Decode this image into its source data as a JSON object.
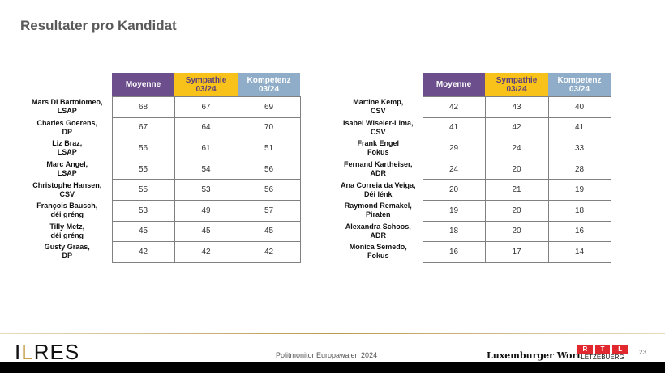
{
  "title": "Resultater pro Kandidat",
  "headers": [
    "Moyenne",
    "Sympathie 03/24",
    "Kompetenz 03/24"
  ],
  "left": [
    {
      "name": "Mars Di Bartolomeo,",
      "party": "LSAP",
      "v": [
        "68",
        "67",
        "69"
      ]
    },
    {
      "name": "Charles Goerens,",
      "party": "DP",
      "v": [
        "67",
        "64",
        "70"
      ]
    },
    {
      "name": "Liz Braz,",
      "party": "LSAP",
      "v": [
        "56",
        "61",
        "51"
      ]
    },
    {
      "name": "Marc Angel,",
      "party": "LSAP",
      "v": [
        "55",
        "54",
        "56"
      ]
    },
    {
      "name": "Christophe Hansen,",
      "party": "CSV",
      "v": [
        "55",
        "53",
        "56"
      ]
    },
    {
      "name": "François Bausch,",
      "party": "déi gréng",
      "v": [
        "53",
        "49",
        "57"
      ]
    },
    {
      "name": "Tilly Metz,",
      "party": "déi gréng",
      "v": [
        "45",
        "45",
        "45"
      ]
    },
    {
      "name": "Gusty Graas,",
      "party": "DP",
      "v": [
        "42",
        "42",
        "42"
      ]
    }
  ],
  "right": [
    {
      "name": "Martine Kemp,",
      "party": "CSV",
      "v": [
        "42",
        "43",
        "40"
      ]
    },
    {
      "name": "Isabel Wiseler-Lima,",
      "party": "CSV",
      "v": [
        "41",
        "42",
        "41"
      ]
    },
    {
      "name": "Frank Engel",
      "party": "Fokus",
      "v": [
        "29",
        "24",
        "33"
      ]
    },
    {
      "name": "Fernand Kartheiser,",
      "party": "ADR",
      "v": [
        "24",
        "20",
        "28"
      ]
    },
    {
      "name": "Ana Correia da Veiga,",
      "party": "Déi lénk",
      "v": [
        "20",
        "21",
        "19"
      ]
    },
    {
      "name": "Raymond Remakel,",
      "party": "Piraten",
      "v": [
        "19",
        "20",
        "18"
      ]
    },
    {
      "name": "Alexandra Schoos,",
      "party": "ADR",
      "v": [
        "18",
        "20",
        "16"
      ]
    },
    {
      "name": "Monica Semedo,",
      "party": "Fokus",
      "v": [
        "16",
        "17",
        "14"
      ]
    }
  ],
  "footer": {
    "logo": "ILRES",
    "text": "Politmonitor Europawalen 2024",
    "partner1": "Luxemburger Wort",
    "rtl": [
      "R",
      "T",
      "L"
    ],
    "rtl_sub": "LËTZEBUERG",
    "page": "23"
  },
  "colors": {
    "moyenne": "#6b4e8b",
    "sympathie": "#f9c21b",
    "kompetenz": "#8fadc8"
  }
}
